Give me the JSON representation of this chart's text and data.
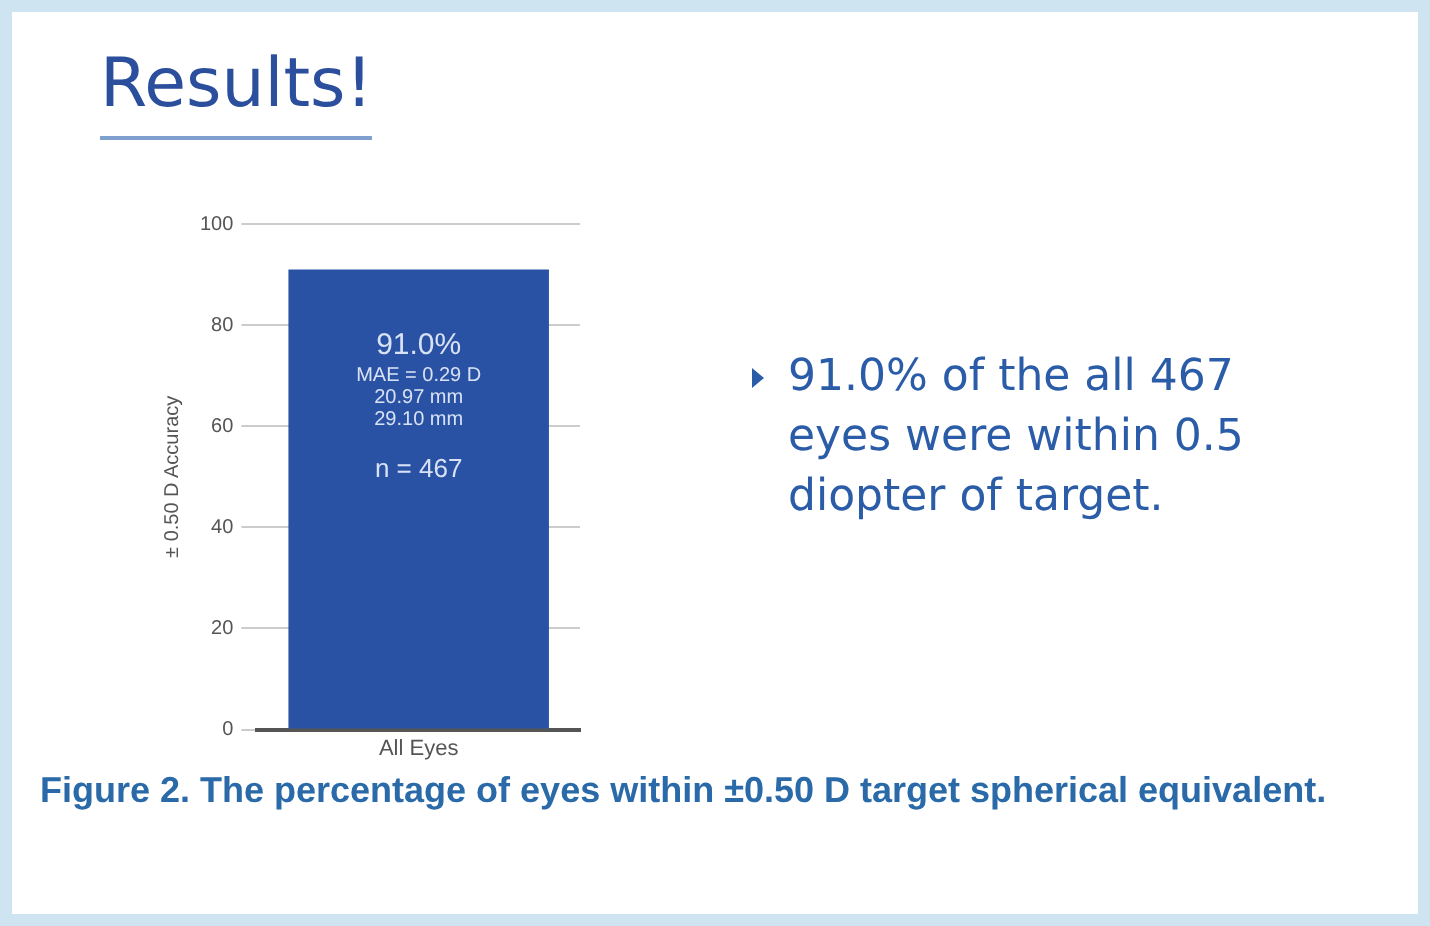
{
  "chart_data": {
    "type": "bar",
    "title": "Results!",
    "ylabel": "± 0.50 D Accuracy",
    "categories": [
      "All Eyes"
    ],
    "values": [
      91
    ],
    "value_labels": [
      "91.0%"
    ],
    "color": "#2a52a4",
    "ylim": [
      0,
      100
    ],
    "yticks": [
      0,
      20,
      40,
      60,
      80,
      100
    ],
    "grid": "y",
    "legend": false,
    "annotations": [
      "MAE = 0.29 D",
      "20.97 mm",
      "29.10 mm",
      "n = 467",
      "91.0% of the all 467 eyes were within 0.5 diopter of target.",
      "Figure 2.  The percentage of eyes within ±0.50 D target spherical equivalent."
    ]
  }
}
